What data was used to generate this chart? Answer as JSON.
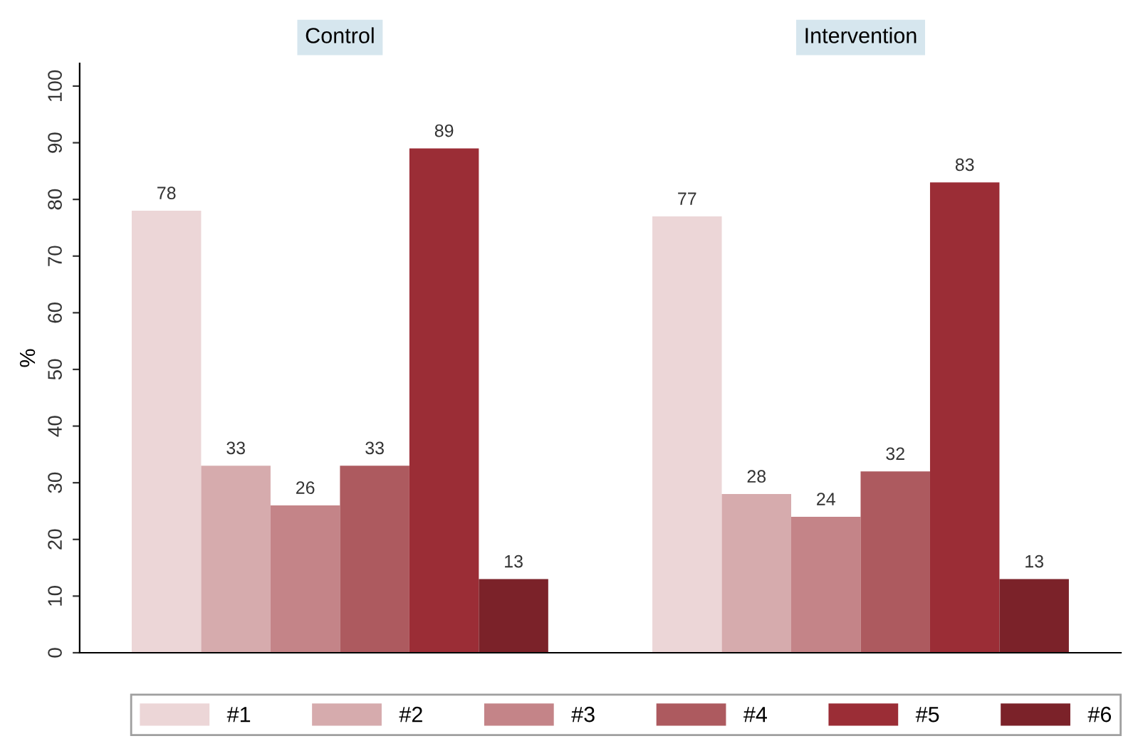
{
  "chart_data": {
    "type": "bar",
    "ylabel": "%",
    "categories": [
      "Control",
      "Intervention"
    ],
    "ylim": [
      0,
      104
    ],
    "yticks": [
      0,
      10,
      20,
      30,
      40,
      50,
      60,
      70,
      80,
      90,
      100
    ],
    "data_labels": true,
    "legend": "bottom",
    "grid": false,
    "series": [
      {
        "name": "#1",
        "color": "#ecd6d7",
        "values": [
          78,
          77
        ]
      },
      {
        "name": "#2",
        "color": "#d6abad",
        "values": [
          33,
          28
        ]
      },
      {
        "name": "#3",
        "color": "#c48488",
        "values": [
          26,
          24
        ]
      },
      {
        "name": "#4",
        "color": "#ad5a5f",
        "values": [
          33,
          32
        ]
      },
      {
        "name": "#5",
        "color": "#9b2d36",
        "values": [
          89,
          83
        ]
      },
      {
        "name": "#6",
        "color": "#7b2229",
        "values": [
          13,
          13
        ]
      }
    ]
  }
}
